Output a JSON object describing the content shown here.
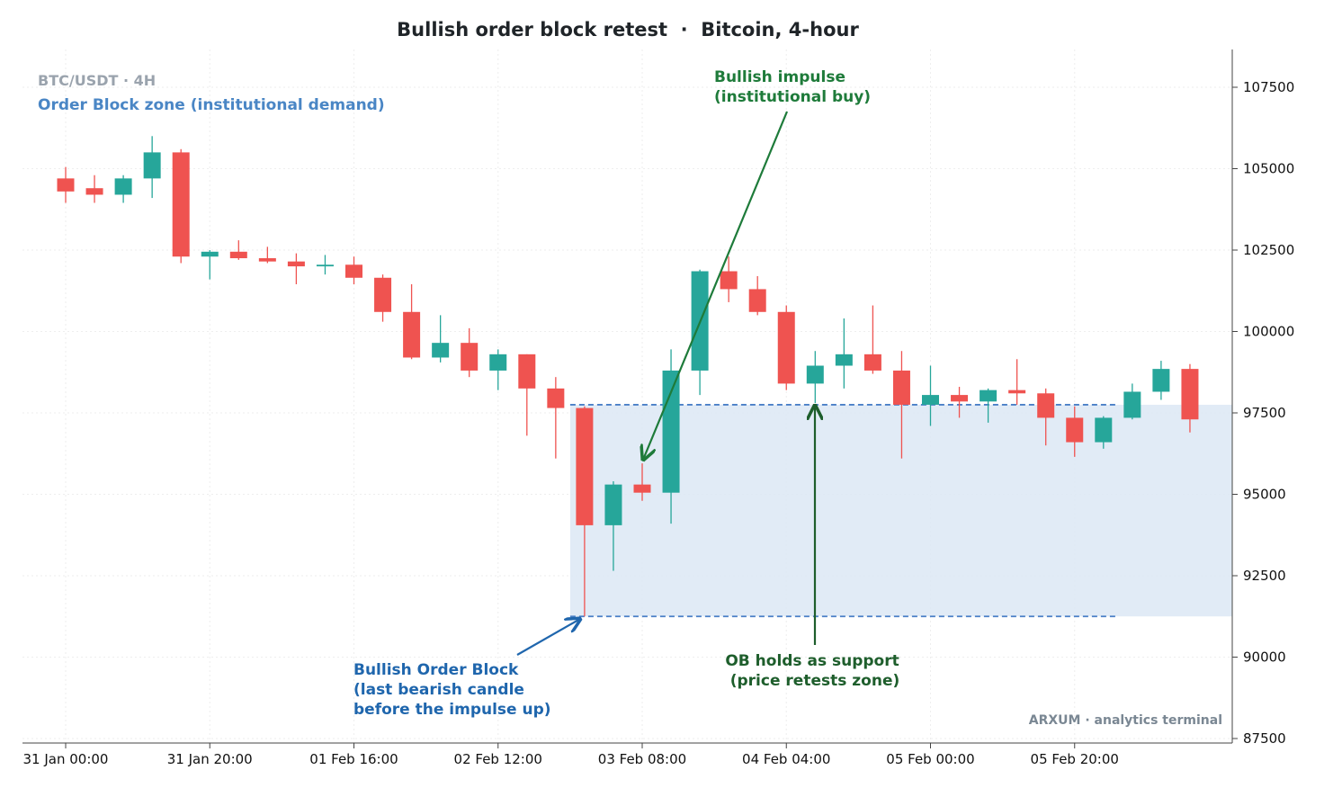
{
  "chart_data": {
    "type": "candlestick",
    "title": "Bullish order block retest  ·  Bitcoin, 4-hour",
    "ticker_label": "BTC/USDT · 4H",
    "zone_label": "Order Block zone (institutional demand)",
    "watermark": "ARXUM · analytics terminal",
    "ylim": [
      87300,
      108700
    ],
    "y_ticks": [
      87500,
      90000,
      92500,
      95000,
      97500,
      100000,
      102500,
      105000,
      107500
    ],
    "y_tick_labels": [
      "87500",
      "90000",
      "92500",
      "95000",
      "97500",
      "100000",
      "102500",
      "105000",
      "107500"
    ],
    "x_ticks": [
      {
        "index": 0,
        "label": "31 Jan 00:00"
      },
      {
        "index": 5,
        "label": "31 Jan 20:00"
      },
      {
        "index": 10,
        "label": "01 Feb 16:00"
      },
      {
        "index": 15,
        "label": "02 Feb 12:00"
      },
      {
        "index": 20,
        "label": "03 Feb 08:00"
      },
      {
        "index": 25,
        "label": "04 Feb 04:00"
      },
      {
        "index": 30,
        "label": "05 Feb 00:00"
      },
      {
        "index": 35,
        "label": "05 Feb 20:00"
      }
    ],
    "grid": true,
    "colors": {
      "up": "#26a69a",
      "down": "#ef5350",
      "zone_fill": "#dce8f5",
      "zone_line": "#4a7fc7"
    },
    "candles": [
      {
        "o": 104700,
        "h": 105050,
        "l": 103950,
        "c": 104300
      },
      {
        "o": 104400,
        "h": 104800,
        "l": 103950,
        "c": 104200
      },
      {
        "o": 104200,
        "h": 104800,
        "l": 103950,
        "c": 104700
      },
      {
        "o": 104700,
        "h": 106000,
        "l": 104100,
        "c": 105500
      },
      {
        "o": 105500,
        "h": 105600,
        "l": 102100,
        "c": 102300
      },
      {
        "o": 102300,
        "h": 102500,
        "l": 101600,
        "c": 102450
      },
      {
        "o": 102450,
        "h": 102800,
        "l": 102200,
        "c": 102250
      },
      {
        "o": 102250,
        "h": 102600,
        "l": 102100,
        "c": 102150
      },
      {
        "o": 102150,
        "h": 102400,
        "l": 101450,
        "c": 102000
      },
      {
        "o": 102000,
        "h": 102350,
        "l": 101750,
        "c": 102050
      },
      {
        "o": 102050,
        "h": 102300,
        "l": 101450,
        "c": 101650
      },
      {
        "o": 101650,
        "h": 101750,
        "l": 100300,
        "c": 100600
      },
      {
        "o": 100600,
        "h": 101450,
        "l": 99150,
        "c": 99200
      },
      {
        "o": 99200,
        "h": 100500,
        "l": 99050,
        "c": 99650
      },
      {
        "o": 99650,
        "h": 100100,
        "l": 98600,
        "c": 98800
      },
      {
        "o": 98800,
        "h": 99450,
        "l": 98200,
        "c": 99300
      },
      {
        "o": 99300,
        "h": 99300,
        "l": 96800,
        "c": 98250
      },
      {
        "o": 98250,
        "h": 98600,
        "l": 96100,
        "c": 97650
      },
      {
        "o": 97650,
        "h": 97700,
        "l": 91250,
        "c": 94050
      },
      {
        "o": 94050,
        "h": 95400,
        "l": 92650,
        "c": 95300
      },
      {
        "o": 95300,
        "h": 95950,
        "l": 94800,
        "c": 95050
      },
      {
        "o": 95050,
        "h": 99450,
        "l": 94100,
        "c": 98800
      },
      {
        "o": 98800,
        "h": 101900,
        "l": 98050,
        "c": 101850
      },
      {
        "o": 101850,
        "h": 102300,
        "l": 100900,
        "c": 101300
      },
      {
        "o": 101300,
        "h": 101700,
        "l": 100500,
        "c": 100600
      },
      {
        "o": 100600,
        "h": 100800,
        "l": 98200,
        "c": 98400
      },
      {
        "o": 98400,
        "h": 99400,
        "l": 97800,
        "c": 98950
      },
      {
        "o": 98950,
        "h": 100400,
        "l": 98250,
        "c": 99300
      },
      {
        "o": 99300,
        "h": 100800,
        "l": 98700,
        "c": 98800
      },
      {
        "o": 98800,
        "h": 99400,
        "l": 96100,
        "c": 97750
      },
      {
        "o": 97750,
        "h": 98950,
        "l": 97100,
        "c": 98050
      },
      {
        "o": 98050,
        "h": 98300,
        "l": 97350,
        "c": 97850
      },
      {
        "o": 97850,
        "h": 98250,
        "l": 97200,
        "c": 98200
      },
      {
        "o": 98200,
        "h": 99150,
        "l": 97750,
        "c": 98100
      },
      {
        "o": 98100,
        "h": 98250,
        "l": 96500,
        "c": 97350
      },
      {
        "o": 97350,
        "h": 97700,
        "l": 96150,
        "c": 96600
      },
      {
        "o": 96600,
        "h": 97400,
        "l": 96400,
        "c": 97350
      },
      {
        "o": 97350,
        "h": 98400,
        "l": 97300,
        "c": 98150
      },
      {
        "o": 98150,
        "h": 99100,
        "l": 97900,
        "c": 98850
      },
      {
        "o": 98850,
        "h": 99000,
        "l": 96900,
        "c": 97300
      }
    ],
    "zone": {
      "top": 97750,
      "bottom": 91250,
      "start_index": 18
    },
    "annotations": {
      "order_block": {
        "lines": [
          "Bullish Order Block",
          "(last bearish candle",
          "before the impulse up)"
        ]
      },
      "impulse": {
        "lines": [
          "Bullish impulse",
          "(institutional buy)"
        ]
      },
      "support": {
        "lines": [
          "OB holds as support",
          "(price retests zone)"
        ]
      }
    }
  }
}
